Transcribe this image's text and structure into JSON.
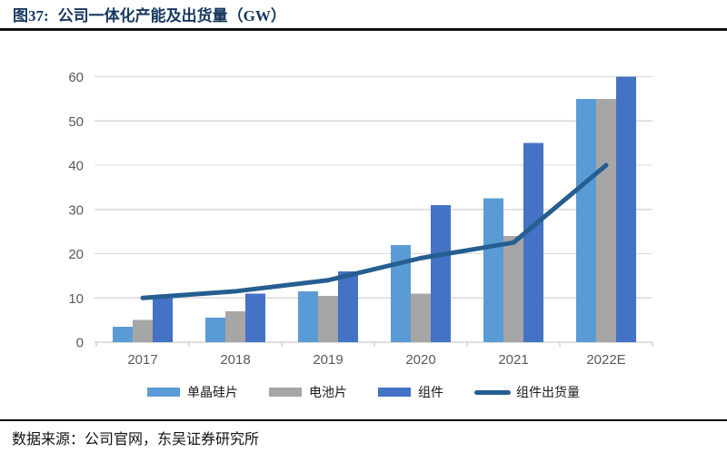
{
  "figure": {
    "label": "图37:",
    "title": "公司一体化产能及出货量（GW）"
  },
  "source_note": "数据来源：公司官网，东吴证券研究所",
  "colors": {
    "title_text": "#17375E",
    "divider": "#0d0d0d",
    "axis_text": "#595959",
    "gridline": "#D9D9D9",
    "axis_line": "#BFBFBF",
    "wafer_bar": "#5B9BD5",
    "cell_bar": "#A6A6A6",
    "module_bar": "#4472C4",
    "shipment_line": "#255E91"
  },
  "chart_data": {
    "type": "bar",
    "subtype": "grouped bars with overlaid line",
    "categories": [
      "2017",
      "2018",
      "2019",
      "2020",
      "2021",
      "2022E"
    ],
    "series": [
      {
        "name": "单晶硅片",
        "type": "bar",
        "color_key": "wafer_bar",
        "values": [
          3.5,
          5.5,
          11.5,
          22,
          32.5,
          55
        ]
      },
      {
        "name": "电池片",
        "type": "bar",
        "color_key": "cell_bar",
        "values": [
          5,
          7,
          10.5,
          11,
          24,
          55
        ]
      },
      {
        "name": "组件",
        "type": "bar",
        "color_key": "module_bar",
        "values": [
          10.5,
          11,
          16,
          31,
          45,
          60
        ]
      },
      {
        "name": "组件出货量",
        "type": "line",
        "color_key": "shipment_line",
        "values": [
          10,
          11.5,
          14,
          19,
          22.5,
          40
        ]
      }
    ],
    "title": "公司一体化产能及出货量（GW）",
    "xlabel": "",
    "ylabel": "",
    "ylim": [
      0,
      60
    ],
    "y_ticks": [
      0,
      10,
      20,
      30,
      40,
      50,
      60
    ],
    "grid": "horizontal",
    "legend_position": "bottom"
  }
}
